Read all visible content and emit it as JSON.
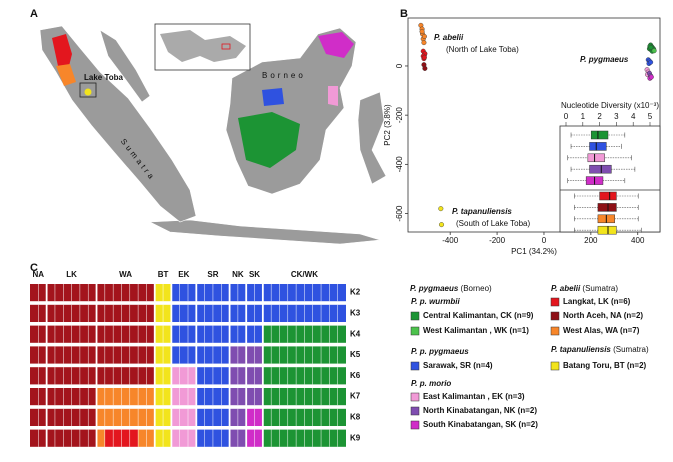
{
  "panel_labels": [
    "A",
    "B",
    "C"
  ],
  "map": {
    "lake": "Lake Toba",
    "island1": "Borneo",
    "island2": "Sumatra"
  },
  "chart_data": [
    {
      "type": "scatter",
      "xlabel": "PC1 (34.2%)",
      "ylabel": "PC2 (3.8%)",
      "xlim": [
        -580,
        495
      ],
      "ylim": [
        -675,
        195
      ],
      "xticks": [
        -400,
        -200,
        0,
        200,
        400
      ],
      "yticks": [
        0,
        -200,
        -400,
        -600
      ],
      "annotations": [
        {
          "species": "P. abelii",
          "note": "(North of Lake Toba)"
        },
        {
          "species": "P. pygmaeus"
        },
        {
          "species": "P. tapanuliensis",
          "note": "(South of Lake Toba)"
        }
      ],
      "series": [
        {
          "color": "#f7862a",
          "x": [
            -525,
            -520,
            -518,
            -515,
            -512,
            -520,
            -510
          ],
          "y": [
            165,
            150,
            130,
            110,
            95,
            140,
            120
          ]
        },
        {
          "color": "#e3161e",
          "x": [
            -515,
            -510,
            -512,
            -508,
            -515,
            -510
          ],
          "y": [
            60,
            45,
            30,
            50,
            40,
            35
          ]
        },
        {
          "color": "#8e1016",
          "x": [
            -512,
            -508
          ],
          "y": [
            5,
            -10
          ]
        },
        {
          "color": "#f2e41c",
          "x": [
            -440,
            -437
          ],
          "y": [
            -580,
            -645
          ]
        },
        {
          "color": "#1c9434",
          "x": [
            455,
            460,
            450,
            465,
            458,
            462,
            452,
            468,
            456
          ],
          "y": [
            85,
            78,
            70,
            72,
            65,
            60,
            80,
            68,
            75
          ]
        },
        {
          "color": "#4cc24c",
          "x": [
            470
          ],
          "y": [
            62
          ]
        },
        {
          "color": "#2f52e0",
          "x": [
            445,
            450,
            448,
            455
          ],
          "y": [
            25,
            20,
            10,
            15
          ]
        },
        {
          "color": "#f19ad6",
          "x": [
            440,
            445,
            442
          ],
          "y": [
            -15,
            -25,
            -35
          ]
        },
        {
          "color": "#7f4db0",
          "x": [
            450,
            455
          ],
          "y": [
            -30,
            -40
          ]
        },
        {
          "color": "#d02dc8",
          "x": [
            452,
            458
          ],
          "y": [
            -50,
            -45
          ]
        }
      ]
    },
    {
      "type": "box",
      "title": "Nucleotide Diversity (x10⁻³)",
      "xlim": [
        0,
        5
      ],
      "xticks": [
        0,
        1,
        2,
        3,
        4,
        5
      ],
      "boxes": [
        {
          "color": "#1c9434",
          "min": 0.3,
          "q1": 1.5,
          "median": 1.9,
          "q3": 2.5,
          "max": 3.5
        },
        {
          "color": "#2f52e0",
          "min": 0.3,
          "q1": 1.4,
          "median": 1.8,
          "q3": 2.4,
          "max": 3.3
        },
        {
          "color": "#f19ad6",
          "min": 0.1,
          "q1": 1.3,
          "median": 1.7,
          "q3": 2.3,
          "max": 3.9
        },
        {
          "color": "#7f4db0",
          "min": 0.3,
          "q1": 1.4,
          "median": 2.1,
          "q3": 2.7,
          "max": 4.1
        },
        {
          "color": "#d02dc8",
          "min": 0.1,
          "q1": 1.2,
          "median": 1.7,
          "q3": 2.2,
          "max": 3.5
        },
        {
          "color": "#e3161e",
          "min": 0.5,
          "q1": 2.0,
          "median": 2.6,
          "q3": 3.0,
          "max": 4.3
        },
        {
          "color": "#8e1016",
          "min": 0.5,
          "q1": 1.9,
          "median": 2.5,
          "q3": 3.0,
          "max": 4.3
        },
        {
          "color": "#f7862a",
          "min": 0.5,
          "q1": 1.9,
          "median": 2.4,
          "q3": 2.9,
          "max": 4.3
        },
        {
          "color": "#f2e41c",
          "min": 0.5,
          "q1": 1.9,
          "median": 2.5,
          "q3": 3.0,
          "max": 4.5
        }
      ]
    }
  ],
  "structure": {
    "groups": [
      {
        "label": "NA",
        "n": 2
      },
      {
        "label": "LK",
        "n": 6
      },
      {
        "label": "WA",
        "n": 7
      },
      {
        "label": "BT",
        "n": 2
      },
      {
        "label": "EK",
        "n": 3
      },
      {
        "label": "SR",
        "n": 4
      },
      {
        "label": "NK",
        "n": 2
      },
      {
        "label": "SK",
        "n": 2
      },
      {
        "label": "CK/WK",
        "n": 10
      }
    ],
    "rows": [
      {
        "label": "K2",
        "segments": [
          {
            "color": "#a3141c",
            "count": 15
          },
          {
            "color": "#f2e41c",
            "count": 2
          },
          {
            "color": "#2f52e0",
            "count": 21
          }
        ]
      },
      {
        "label": "K3",
        "segments": [
          {
            "color": "#a3141c",
            "count": 15
          },
          {
            "color": "#f2e41c",
            "count": 2
          },
          {
            "color": "#2f52e0",
            "count": 21
          }
        ]
      },
      {
        "label": "K4",
        "segments": [
          {
            "color": "#a3141c",
            "count": 15
          },
          {
            "color": "#f2e41c",
            "count": 2
          },
          {
            "color": "#2f52e0",
            "count": 11
          },
          {
            "color": "#1c9434",
            "count": 10
          }
        ]
      },
      {
        "label": "K5",
        "segments": [
          {
            "color": "#a3141c",
            "count": 15
          },
          {
            "color": "#f2e41c",
            "count": 2
          },
          {
            "color": "#2f52e0",
            "count": 7
          },
          {
            "color": "#7f4db0",
            "count": 4
          },
          {
            "color": "#1c9434",
            "count": 10
          }
        ]
      },
      {
        "label": "K6",
        "segments": [
          {
            "color": "#a3141c",
            "count": 15
          },
          {
            "color": "#f2e41c",
            "count": 2
          },
          {
            "color": "#f19ad6",
            "count": 3
          },
          {
            "color": "#2f52e0",
            "count": 4
          },
          {
            "color": "#7f4db0",
            "count": 4
          },
          {
            "color": "#1c9434",
            "count": 10
          }
        ]
      },
      {
        "label": "K7",
        "segments": [
          {
            "color": "#a3141c",
            "count": 8
          },
          {
            "color": "#f7862a",
            "count": 7
          },
          {
            "color": "#f2e41c",
            "count": 2
          },
          {
            "color": "#f19ad6",
            "count": 3
          },
          {
            "color": "#2f52e0",
            "count": 4
          },
          {
            "color": "#7f4db0",
            "count": 4
          },
          {
            "color": "#1c9434",
            "count": 10
          }
        ]
      },
      {
        "label": "K8",
        "segments": [
          {
            "color": "#a3141c",
            "count": 8
          },
          {
            "color": "#f7862a",
            "count": 7
          },
          {
            "color": "#f2e41c",
            "count": 2
          },
          {
            "color": "#f19ad6",
            "count": 3
          },
          {
            "color": "#2f52e0",
            "count": 4
          },
          {
            "color": "#7f4db0",
            "count": 2
          },
          {
            "color": "#d02dc8",
            "count": 2
          },
          {
            "color": "#1c9434",
            "count": 10
          }
        ]
      },
      {
        "label": "K9",
        "segments": [
          {
            "color": "#a3141c",
            "count": 8
          },
          {
            "color": "#f7862a",
            "count": 1
          },
          {
            "color": "#e3161e",
            "count": 4
          },
          {
            "color": "#f7862a",
            "count": 2
          },
          {
            "color": "#f2e41c",
            "count": 2
          },
          {
            "color": "#f19ad6",
            "count": 3
          },
          {
            "color": "#2f52e0",
            "count": 4
          },
          {
            "color": "#7f4db0",
            "count": 2
          },
          {
            "color": "#d02dc8",
            "count": 2
          },
          {
            "color": "#1c9434",
            "count": 10
          }
        ]
      }
    ]
  },
  "legend": {
    "headers": [
      {
        "species": "P. pygmaeus",
        "note": " (Borneo)"
      },
      {
        "species": "P. abelii",
        "note": " (Sumatra)"
      },
      {
        "species": "P. tapanuliensis",
        "note": " (Sumatra)"
      }
    ],
    "subheaders": [
      "P. p. wurmbii",
      "P. p. pygmaeus",
      "P. p. morio"
    ],
    "items": [
      {
        "label": "Central Kalimantan, CK (n=9)",
        "color": "#1c9434"
      },
      {
        "label": "West Kalimantan , WK (n=1)",
        "color": "#4cc24c"
      },
      {
        "label": "Sarawak, SR (n=4)",
        "color": "#2f52e0"
      },
      {
        "label": "East Kalimantan , EK (n=3)",
        "color": "#f19ad6"
      },
      {
        "label": "North Kinabatangan, NK (n=2)",
        "color": "#7f4db0"
      },
      {
        "label": "South Kinabatangan, SK (n=2)",
        "color": "#d02dc8"
      },
      {
        "label": "Langkat, LK (n=6)",
        "color": "#e3161e"
      },
      {
        "label": "North Aceh, NA (n=2)",
        "color": "#8e1016"
      },
      {
        "label": "West Alas, WA (n=7)",
        "color": "#f7862a"
      },
      {
        "label": "Batang Toru, BT (n=2)",
        "color": "#f2e41c"
      }
    ]
  }
}
